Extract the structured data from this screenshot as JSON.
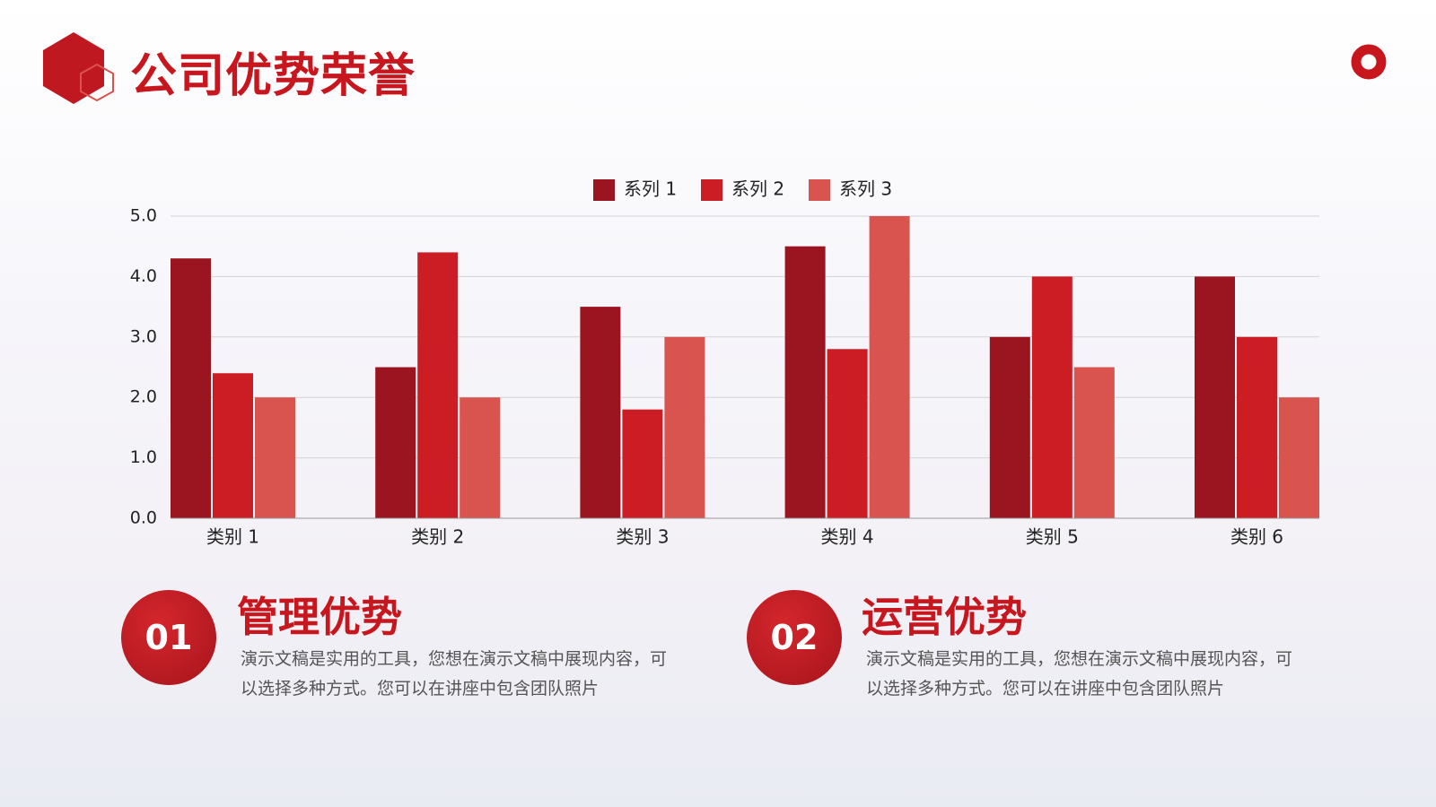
{
  "header": {
    "title": "公司优势荣誉"
  },
  "chart_data": {
    "type": "bar",
    "categories": [
      "类别 1",
      "类别 2",
      "类别 3",
      "类别 4",
      "类别 5",
      "类别 6"
    ],
    "series": [
      {
        "name": "系列 1",
        "color": "#9b1520",
        "values": [
          4.3,
          2.5,
          3.5,
          4.5,
          3.0,
          4.0
        ]
      },
      {
        "name": "系列 2",
        "color": "#cc1c24",
        "values": [
          2.4,
          4.4,
          1.8,
          2.8,
          4.0,
          3.0
        ]
      },
      {
        "name": "系列 3",
        "color": "#d9534f",
        "values": [
          2.0,
          2.0,
          3.0,
          5.0,
          2.5,
          2.0
        ]
      }
    ],
    "ylim": [
      0,
      5
    ],
    "yticks": [
      {
        "value": 0,
        "label": "0.0"
      },
      {
        "value": 1,
        "label": "1.0"
      },
      {
        "value": 2,
        "label": "2.0"
      },
      {
        "value": 3,
        "label": "3.0"
      },
      {
        "value": 4,
        "label": "4.0"
      },
      {
        "value": 5,
        "label": "5.0"
      }
    ],
    "grid": true,
    "legend": "top"
  },
  "features": [
    {
      "number": "01",
      "title": "管理优势",
      "text": "演示文稿是实用的工具，您想在演示文稿中展现内容，可以选择多种方式。您可以在讲座中包含团队照片"
    },
    {
      "number": "02",
      "title": "运营优势",
      "text": "演示文稿是实用的工具，您想在演示文稿中展现内容，可以选择多种方式。您可以在讲座中包含团队照片"
    }
  ]
}
